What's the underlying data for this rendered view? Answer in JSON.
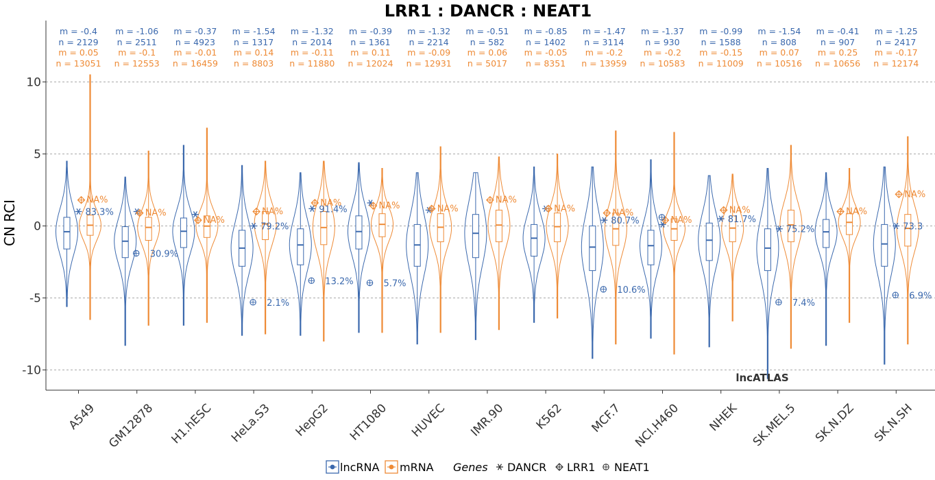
{
  "colors": {
    "lncRNA": "#3a68ad",
    "mRNA": "#ee8a35",
    "grid": "#8c8c8c",
    "axis": "#333333"
  },
  "watermark": "lncATLAS",
  "legend": {
    "lncRNA_label": "lncRNA",
    "mRNA_label": "mRNA",
    "genes_title": "Genes",
    "genes": [
      {
        "symbol": "✳",
        "name": "DANCR",
        "icon": "asterisk-icon"
      },
      {
        "symbol": "⊕",
        "name": "LRR1",
        "icon": "diamond-plus-icon"
      },
      {
        "symbol": "⊕",
        "name": "NEAT1",
        "icon": "circle-plus-icon"
      }
    ]
  },
  "chart_data": {
    "type": "violin",
    "title": "LRR1 : DANCR : NEAT1",
    "ylabel": "CN RCI",
    "ylim": [
      -11.4,
      12.3
    ],
    "yticks": [
      10,
      5,
      0,
      -5,
      -10
    ],
    "ytick_labels": [
      "10",
      "5",
      "0",
      "-5",
      "-10"
    ],
    "grid": "dashed horizontal at major ticks",
    "categories": [
      "A549",
      "GM12878",
      "H1.hESC",
      "HeLa.S3",
      "HepG2",
      "HT1080",
      "HUVEC",
      "IMR.90",
      "K562",
      "MCF.7",
      "NCI.H460",
      "NHEK",
      "SK.MEL.5",
      "SK.N.DZ",
      "SK.N.SH"
    ],
    "stats": {
      "lncRNA_m": [
        "m = -0.4",
        "m = -1.06",
        "m = -0.37",
        "m = -1.54",
        "m = -1.32",
        "m = -0.39",
        "m = -1.32",
        "m = -0.51",
        "m = -0.85",
        "m = -1.47",
        "m = -1.37",
        "m = -0.99",
        "m = -1.54",
        "m = -0.41",
        "m = -1.25"
      ],
      "lncRNA_n": [
        "n = 2129",
        "n = 2511",
        "n = 4923",
        "n = 1317",
        "n = 2014",
        "n = 1361",
        "n = 2214",
        "n = 582",
        "n = 1402",
        "n = 3114",
        "n = 930",
        "n = 1588",
        "n = 808",
        "n = 907",
        "n = 2417"
      ],
      "mRNA_m": [
        "m = 0.05",
        "m = -0.1",
        "m = -0.01",
        "m = 0.14",
        "m = -0.11",
        "m = 0.11",
        "m = -0.09",
        "m = 0.06",
        "m = -0.05",
        "m = -0.2",
        "m = -0.2",
        "m = -0.15",
        "m = 0.07",
        "m = 0.25",
        "m = -0.17"
      ],
      "mRNA_n": [
        "n = 13051",
        "n = 12553",
        "n = 16459",
        "n = 8803",
        "n = 11880",
        "n = 12024",
        "n = 12931",
        "n = 5017",
        "n = 8351",
        "n = 13959",
        "n = 10583",
        "n = 11009",
        "n = 10516",
        "n = 10656",
        "n = 12174"
      ]
    },
    "series": [
      {
        "name": "lncRNA",
        "median": [
          -0.4,
          -1.06,
          -0.37,
          -1.54,
          -1.32,
          -0.39,
          -1.32,
          -0.51,
          -0.85,
          -1.47,
          -1.37,
          -0.99,
          -1.54,
          -0.41,
          -1.25
        ],
        "q1": [
          -1.6,
          -2.2,
          -1.5,
          -2.8,
          -2.7,
          -1.6,
          -2.8,
          -2.2,
          -2.1,
          -3.1,
          -2.7,
          -2.4,
          -3.1,
          -1.5,
          -2.8
        ],
        "q3": [
          0.6,
          -0.05,
          0.55,
          -0.3,
          -0.2,
          0.7,
          0.1,
          0.8,
          0.1,
          0.0,
          -0.3,
          0.2,
          -0.2,
          0.45,
          0.1
        ],
        "min": [
          -5.6,
          -8.3,
          -6.9,
          -7.6,
          -7.6,
          -7.4,
          -8.2,
          -7.9,
          -6.7,
          -9.2,
          -7.8,
          -8.4,
          -10.6,
          -8.3,
          -9.6
        ],
        "max": [
          4.5,
          3.4,
          5.6,
          4.2,
          3.7,
          4.4,
          3.7,
          3.7,
          4.1,
          4.1,
          4.6,
          3.5,
          4.0,
          3.7,
          4.1
        ]
      },
      {
        "name": "mRNA",
        "median": [
          0.05,
          -0.1,
          -0.01,
          0.14,
          -0.11,
          0.11,
          -0.09,
          0.06,
          -0.05,
          -0.2,
          -0.2,
          -0.15,
          0.07,
          0.25,
          -0.17
        ],
        "q1": [
          -0.65,
          -1.0,
          -0.8,
          -0.95,
          -1.3,
          -0.75,
          -1.1,
          -1.1,
          -1.1,
          -1.35,
          -1.0,
          -1.1,
          -1.1,
          -0.6,
          -1.4
        ],
        "q3": [
          0.75,
          0.6,
          0.7,
          1.0,
          1.0,
          0.85,
          0.85,
          1.1,
          0.9,
          0.9,
          0.5,
          0.7,
          1.1,
          0.85,
          0.8
        ],
        "min": [
          -6.5,
          -6.9,
          -6.7,
          -7.5,
          -8.0,
          -7.4,
          -7.4,
          -7.2,
          -6.4,
          -8.2,
          -8.9,
          -6.6,
          -8.5,
          -6.7,
          -8.2
        ],
        "max": [
          10.5,
          5.2,
          6.8,
          4.5,
          4.5,
          4.0,
          5.5,
          4.8,
          5.0,
          6.6,
          6.5,
          3.6,
          5.6,
          4.0,
          6.2
        ]
      }
    ],
    "genes": [
      {
        "name": "DANCR",
        "marker": "asterisk",
        "values": [
          1.0,
          1.0,
          0.8,
          0.0,
          1.2,
          1.6,
          1.1,
          null,
          1.2,
          0.4,
          0.1,
          0.5,
          -0.2,
          null,
          0.0
        ],
        "labels": [
          "83.3%",
          "",
          "",
          "79.2%",
          "91.4%",
          "",
          "",
          "",
          "",
          "80.7%",
          "",
          "81.7%",
          "75.2%",
          "",
          "73.3"
        ]
      },
      {
        "name": "LRR1",
        "marker": "diamond-plus",
        "values": [
          1.8,
          0.9,
          0.4,
          1.0,
          1.6,
          1.4,
          1.2,
          1.8,
          1.2,
          0.9,
          0.4,
          1.1,
          null,
          1.0,
          2.2
        ],
        "labels": [
          "NA%",
          "NA%",
          "NA%",
          "NA%",
          "NA%",
          "NA%",
          "NA%",
          "NA%",
          "NA%",
          "NA%",
          "NA%",
          "NA%",
          "",
          "NA%",
          "NA%"
        ]
      },
      {
        "name": "NEAT1",
        "marker": "circle-plus",
        "values": [
          null,
          -1.9,
          null,
          -5.3,
          -3.8,
          -3.95,
          null,
          null,
          null,
          -4.4,
          0.6,
          null,
          -5.3,
          null,
          -4.8
        ],
        "labels": [
          "",
          "30.9%",
          "",
          "2.1%",
          "13.2%",
          "5.7%",
          "",
          "",
          "",
          "10.6%",
          "",
          "",
          "7.4%",
          "",
          "6.9%"
        ]
      }
    ]
  }
}
